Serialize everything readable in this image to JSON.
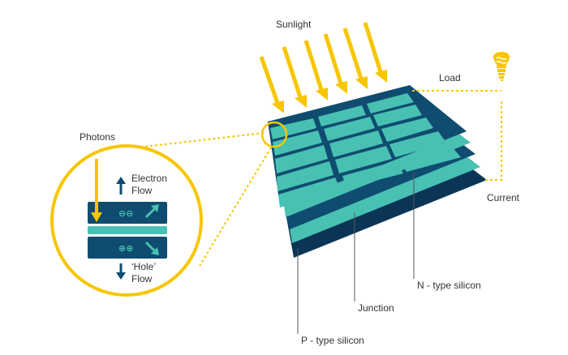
{
  "labels": {
    "sunlight": "Sunlight",
    "load": "Load",
    "current": "Current",
    "photons": "Photons",
    "electron_flow_1": "Electron",
    "electron_flow_2": "Flow",
    "hole_flow_1": "‘Hole’",
    "hole_flow_2": "Flow",
    "n_type": "N - type silicon",
    "junction": "Junction",
    "p_type": "P - type silicon"
  },
  "glyphs": {
    "electrons": "⊖⊖",
    "holes": "⊕⊕"
  },
  "icons": [
    "sun-ray-arrow",
    "light-bulb-icon",
    "electron-flow-arrow-icon",
    "hole-flow-arrow-icon"
  ],
  "colors": {
    "sun_yellow": "#f7c600",
    "teal": "#48c1b3",
    "navy": "#0f4c70",
    "dark_navy": "#0a3556",
    "text": "#333333",
    "leader": "#555555"
  }
}
